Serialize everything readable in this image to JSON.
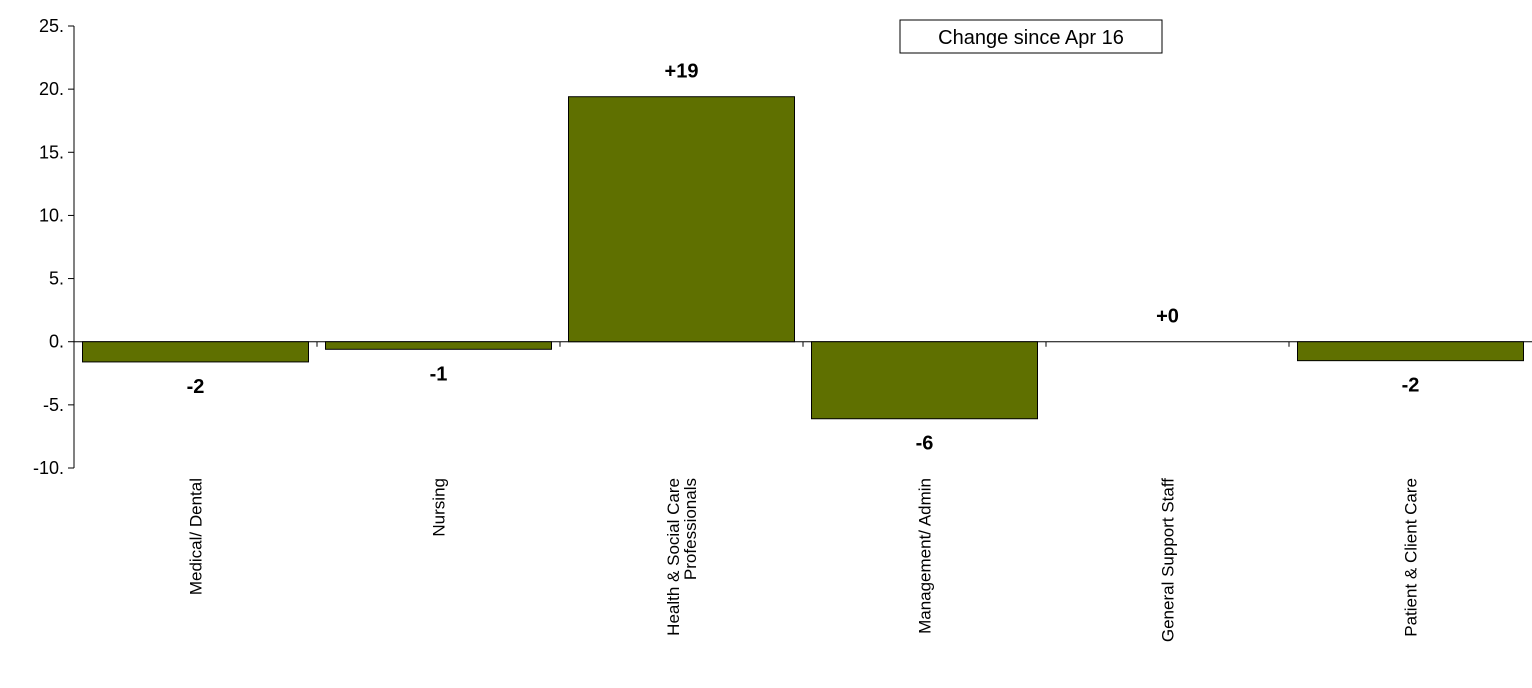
{
  "chart_data": {
    "type": "bar",
    "title": "",
    "xlabel": "",
    "ylabel": "",
    "ylim": [
      -10,
      25
    ],
    "yticks": [
      25,
      20,
      15,
      10,
      5,
      0,
      -5,
      -10
    ],
    "ytick_labels": [
      "25.",
      "20.",
      "15.",
      "10.",
      "5.",
      "0.",
      "-5.",
      "-10."
    ],
    "categories": [
      [
        "Medical/ Dental"
      ],
      [
        "Nursing"
      ],
      [
        "Health & Social Care",
        "Professionals"
      ],
      [
        "Management/ Admin"
      ],
      [
        "General Support Staff"
      ],
      [
        "Patient & Client Care"
      ]
    ],
    "values": [
      -1.6,
      -0.6,
      19.4,
      -6.1,
      0.0,
      -1.5
    ],
    "data_labels": [
      "-2",
      "-1",
      "+19",
      "-6",
      "+0",
      "-2"
    ],
    "legend": "Change since Apr 16",
    "legend_position": "top-right",
    "grid": false,
    "colors": {
      "bar": "#5f7000",
      "bar_edge": "#000000",
      "axis": "#000000"
    }
  }
}
